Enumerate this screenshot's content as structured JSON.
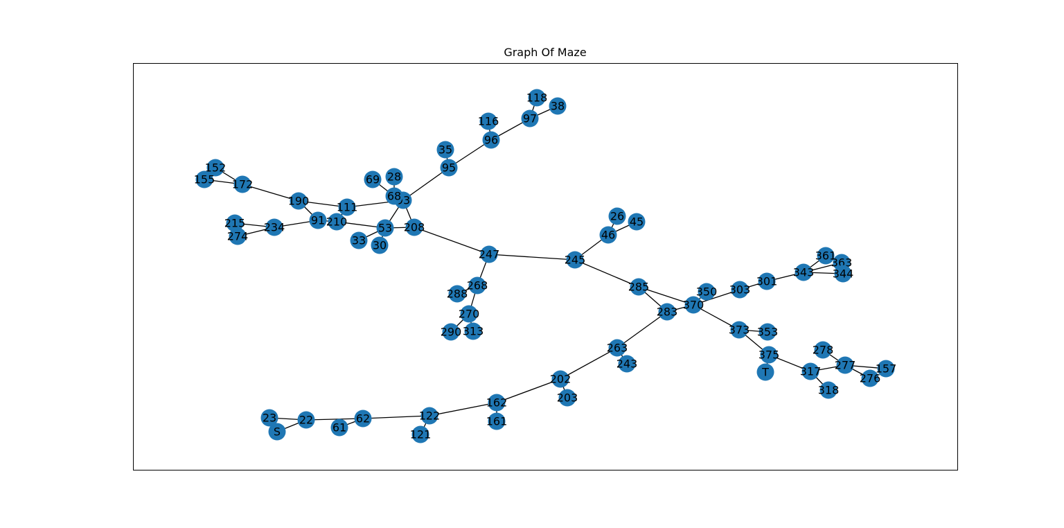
{
  "title": "Graph Of Maze",
  "node_color": "#1f77b4",
  "edge_color": "#000000",
  "nodes": [
    {
      "id": "S"
    },
    {
      "id": "23"
    },
    {
      "id": "22"
    },
    {
      "id": "62"
    },
    {
      "id": "61"
    },
    {
      "id": "122"
    },
    {
      "id": "121"
    },
    {
      "id": "162"
    },
    {
      "id": "161"
    },
    {
      "id": "202"
    },
    {
      "id": "203"
    },
    {
      "id": "263"
    },
    {
      "id": "243"
    },
    {
      "id": "283"
    },
    {
      "id": "285"
    },
    {
      "id": "370"
    },
    {
      "id": "350"
    },
    {
      "id": "303"
    },
    {
      "id": "301"
    },
    {
      "id": "343"
    },
    {
      "id": "361"
    },
    {
      "id": "363"
    },
    {
      "id": "344"
    },
    {
      "id": "373"
    },
    {
      "id": "353"
    },
    {
      "id": "375"
    },
    {
      "id": "T"
    },
    {
      "id": "317"
    },
    {
      "id": "318"
    },
    {
      "id": "277"
    },
    {
      "id": "278"
    },
    {
      "id": "276"
    },
    {
      "id": "157"
    },
    {
      "id": "245"
    },
    {
      "id": "46"
    },
    {
      "id": "26"
    },
    {
      "id": "45"
    },
    {
      "id": "247"
    },
    {
      "id": "268"
    },
    {
      "id": "288"
    },
    {
      "id": "270"
    },
    {
      "id": "290"
    },
    {
      "id": "313"
    },
    {
      "id": "208"
    },
    {
      "id": "53"
    },
    {
      "id": "33"
    },
    {
      "id": "30"
    },
    {
      "id": "93"
    },
    {
      "id": "68"
    },
    {
      "id": "69"
    },
    {
      "id": "28"
    },
    {
      "id": "95"
    },
    {
      "id": "35"
    },
    {
      "id": "96"
    },
    {
      "id": "116"
    },
    {
      "id": "97"
    },
    {
      "id": "118"
    },
    {
      "id": "38"
    },
    {
      "id": "111"
    },
    {
      "id": "190"
    },
    {
      "id": "91"
    },
    {
      "id": "210"
    },
    {
      "id": "234"
    },
    {
      "id": "215"
    },
    {
      "id": "274"
    },
    {
      "id": "172"
    },
    {
      "id": "152"
    },
    {
      "id": "155"
    }
  ],
  "edges": [
    [
      "S",
      "22"
    ],
    [
      "23",
      "22"
    ],
    [
      "22",
      "62"
    ],
    [
      "62",
      "61"
    ],
    [
      "62",
      "122"
    ],
    [
      "122",
      "121"
    ],
    [
      "122",
      "162"
    ],
    [
      "162",
      "161"
    ],
    [
      "162",
      "202"
    ],
    [
      "202",
      "203"
    ],
    [
      "202",
      "263"
    ],
    [
      "263",
      "243"
    ],
    [
      "263",
      "283"
    ],
    [
      "283",
      "285"
    ],
    [
      "283",
      "370"
    ],
    [
      "285",
      "370"
    ],
    [
      "285",
      "245"
    ],
    [
      "370",
      "350"
    ],
    [
      "370",
      "303"
    ],
    [
      "303",
      "301"
    ],
    [
      "301",
      "343"
    ],
    [
      "343",
      "361"
    ],
    [
      "343",
      "363"
    ],
    [
      "343",
      "344"
    ],
    [
      "361",
      "363"
    ],
    [
      "370",
      "373"
    ],
    [
      "373",
      "353"
    ],
    [
      "373",
      "375"
    ],
    [
      "375",
      "T"
    ],
    [
      "375",
      "317"
    ],
    [
      "317",
      "318"
    ],
    [
      "317",
      "277"
    ],
    [
      "277",
      "278"
    ],
    [
      "277",
      "276"
    ],
    [
      "277",
      "157"
    ],
    [
      "245",
      "46"
    ],
    [
      "46",
      "26"
    ],
    [
      "46",
      "45"
    ],
    [
      "245",
      "247"
    ],
    [
      "247",
      "268"
    ],
    [
      "268",
      "288"
    ],
    [
      "268",
      "270"
    ],
    [
      "270",
      "290"
    ],
    [
      "270",
      "313"
    ],
    [
      "247",
      "208"
    ],
    [
      "208",
      "93"
    ],
    [
      "208",
      "53"
    ],
    [
      "53",
      "93"
    ],
    [
      "53",
      "33"
    ],
    [
      "53",
      "30"
    ],
    [
      "53",
      "210"
    ],
    [
      "93",
      "68"
    ],
    [
      "68",
      "69"
    ],
    [
      "68",
      "28"
    ],
    [
      "93",
      "95"
    ],
    [
      "95",
      "35"
    ],
    [
      "95",
      "96"
    ],
    [
      "96",
      "116"
    ],
    [
      "96",
      "97"
    ],
    [
      "97",
      "118"
    ],
    [
      "97",
      "38"
    ],
    [
      "93",
      "111"
    ],
    [
      "111",
      "190"
    ],
    [
      "111",
      "210"
    ],
    [
      "190",
      "91"
    ],
    [
      "91",
      "210"
    ],
    [
      "91",
      "234"
    ],
    [
      "234",
      "215"
    ],
    [
      "234",
      "274"
    ],
    [
      "190",
      "172"
    ],
    [
      "172",
      "152"
    ],
    [
      "172",
      "155"
    ]
  ]
}
